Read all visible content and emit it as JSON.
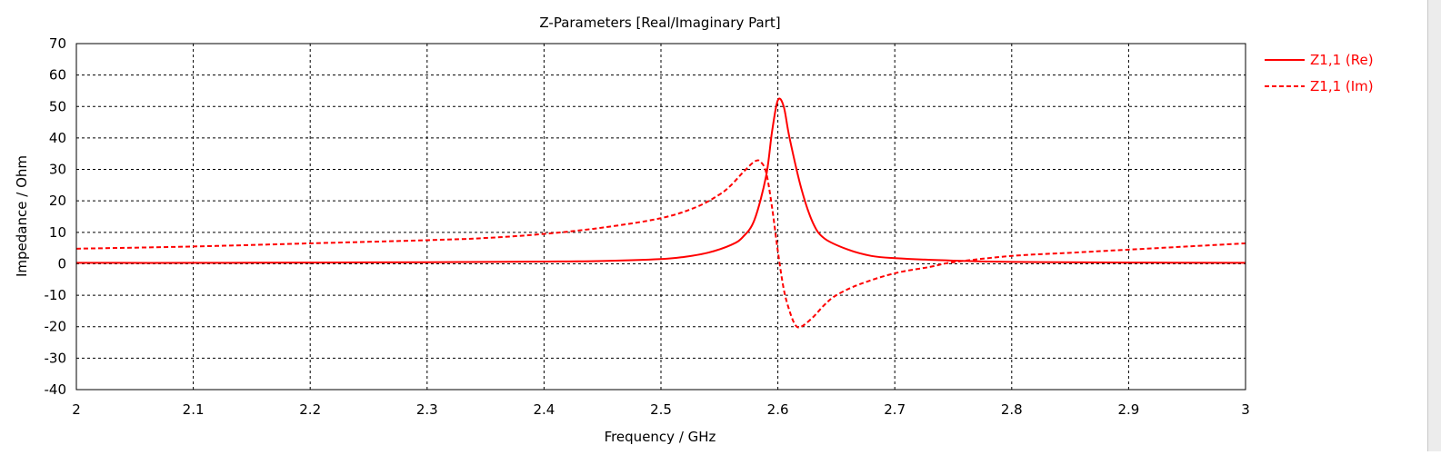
{
  "chart_data": {
    "type": "line",
    "title": "Z-Parameters [Real/Imaginary Part]",
    "xlabel": "Frequency / GHz",
    "ylabel": "Impedance / Ohm",
    "xlim": [
      2,
      3
    ],
    "ylim": [
      -40,
      70
    ],
    "x_ticks": [
      "2",
      "2.1",
      "2.2",
      "2.3",
      "2.4",
      "2.5",
      "2.6",
      "2.7",
      "2.8",
      "2.9",
      "3"
    ],
    "y_ticks": [
      "70",
      "60",
      "50",
      "40",
      "30",
      "20",
      "10",
      "0",
      "-10",
      "-20",
      "-30",
      "-40"
    ],
    "grid": true,
    "legend_position": "right",
    "series": [
      {
        "name": "Z1,1 (Re)",
        "color": "#ff0000",
        "style": "solid",
        "points": [
          [
            2.0,
            0.3
          ],
          [
            2.1,
            0.3
          ],
          [
            2.2,
            0.4
          ],
          [
            2.3,
            0.5
          ],
          [
            2.4,
            0.7
          ],
          [
            2.45,
            0.9
          ],
          [
            2.5,
            1.5
          ],
          [
            2.52,
            2.2
          ],
          [
            2.54,
            3.5
          ],
          [
            2.56,
            6.0
          ],
          [
            2.57,
            8.5
          ],
          [
            2.58,
            14.0
          ],
          [
            2.59,
            28.0
          ],
          [
            2.595,
            42.0
          ],
          [
            2.6,
            52.0
          ],
          [
            2.605,
            50.0
          ],
          [
            2.61,
            40.0
          ],
          [
            2.62,
            24.0
          ],
          [
            2.63,
            13.0
          ],
          [
            2.64,
            8.0
          ],
          [
            2.66,
            4.5
          ],
          [
            2.68,
            2.5
          ],
          [
            2.7,
            1.8
          ],
          [
            2.75,
            1.0
          ],
          [
            2.8,
            0.6
          ],
          [
            2.9,
            0.4
          ],
          [
            3.0,
            0.3
          ]
        ]
      },
      {
        "name": "Z1,1 (Im)",
        "color": "#ff0000",
        "style": "dashed",
        "points": [
          [
            2.0,
            4.8
          ],
          [
            2.1,
            5.5
          ],
          [
            2.2,
            6.5
          ],
          [
            2.3,
            7.5
          ],
          [
            2.35,
            8.2
          ],
          [
            2.4,
            9.5
          ],
          [
            2.45,
            11.5
          ],
          [
            2.5,
            14.5
          ],
          [
            2.53,
            18.0
          ],
          [
            2.55,
            22.0
          ],
          [
            2.56,
            25.0
          ],
          [
            2.57,
            29.0
          ],
          [
            2.58,
            32.5
          ],
          [
            2.585,
            32.5
          ],
          [
            2.59,
            29.0
          ],
          [
            2.595,
            18.0
          ],
          [
            2.6,
            4.0
          ],
          [
            2.605,
            -8.0
          ],
          [
            2.61,
            -15.0
          ],
          [
            2.615,
            -19.5
          ],
          [
            2.62,
            -20.0
          ],
          [
            2.63,
            -17.0
          ],
          [
            2.64,
            -13.0
          ],
          [
            2.65,
            -10.0
          ],
          [
            2.67,
            -6.5
          ],
          [
            2.7,
            -3.0
          ],
          [
            2.73,
            -1.0
          ],
          [
            2.75,
            0.5
          ],
          [
            2.8,
            2.5
          ],
          [
            2.85,
            3.5
          ],
          [
            2.9,
            4.5
          ],
          [
            2.95,
            5.5
          ],
          [
            3.0,
            6.5
          ]
        ]
      }
    ]
  }
}
